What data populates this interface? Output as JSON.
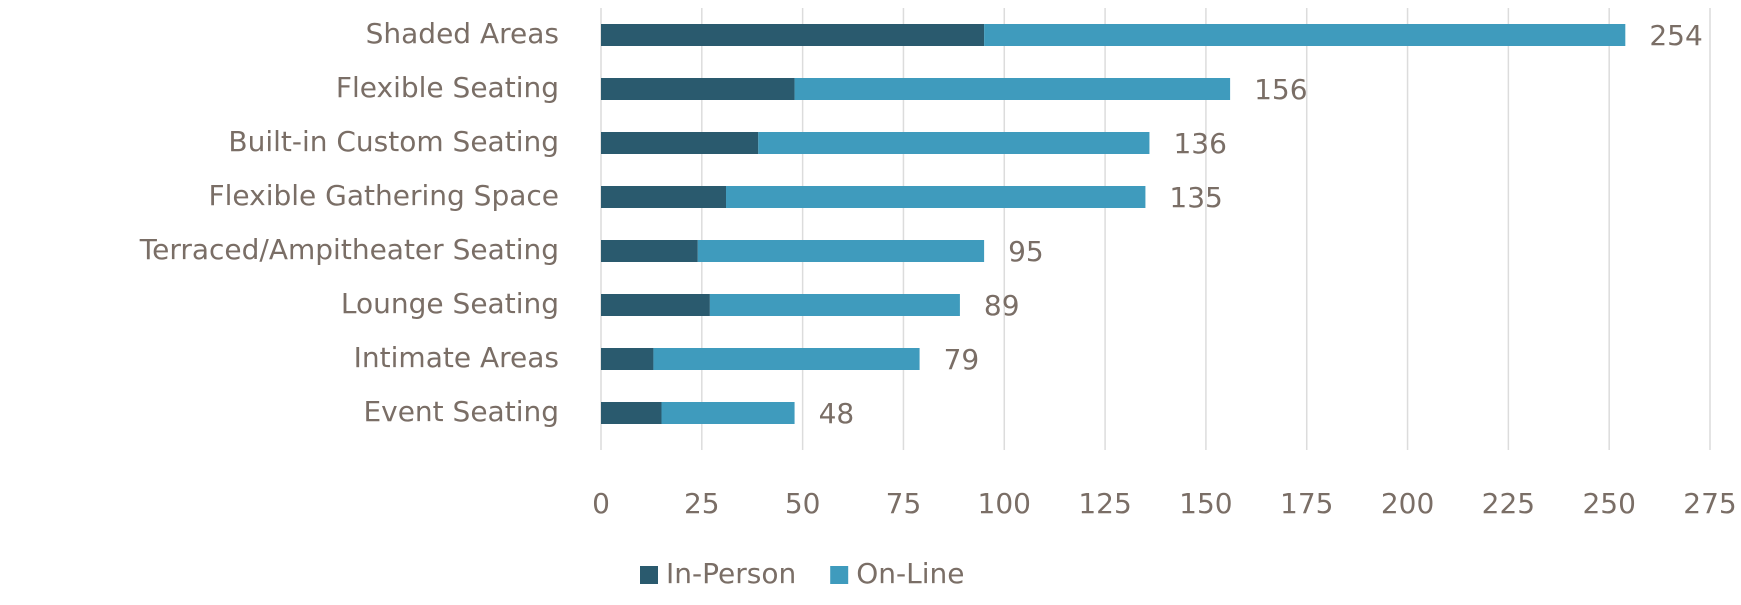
{
  "chart_data": {
    "type": "stacked_barh",
    "categories": [
      "Shaded Areas",
      "Flexible Seating",
      "Built-in Custom Seating",
      "Flexible Gathering Space",
      "Terraced/Ampitheater Seating",
      "Lounge Seating",
      "Intimate Areas",
      "Event Seating"
    ],
    "series": [
      {
        "name": "In-Person",
        "color": "#2a5a6e",
        "values": [
          95,
          48,
          39,
          31,
          24,
          27,
          13,
          15
        ]
      },
      {
        "name": "On-Line",
        "color": "#3f9bbd",
        "values": [
          159,
          108,
          97,
          104,
          71,
          62,
          66,
          33
        ]
      }
    ],
    "totals": [
      254,
      156,
      136,
      135,
      95,
      89,
      79,
      48
    ],
    "xlim": [
      0,
      275
    ],
    "xticks": [
      0,
      25,
      50,
      75,
      100,
      125,
      150,
      175,
      200,
      225,
      250,
      275
    ],
    "grid": true,
    "legend": "bottom"
  }
}
